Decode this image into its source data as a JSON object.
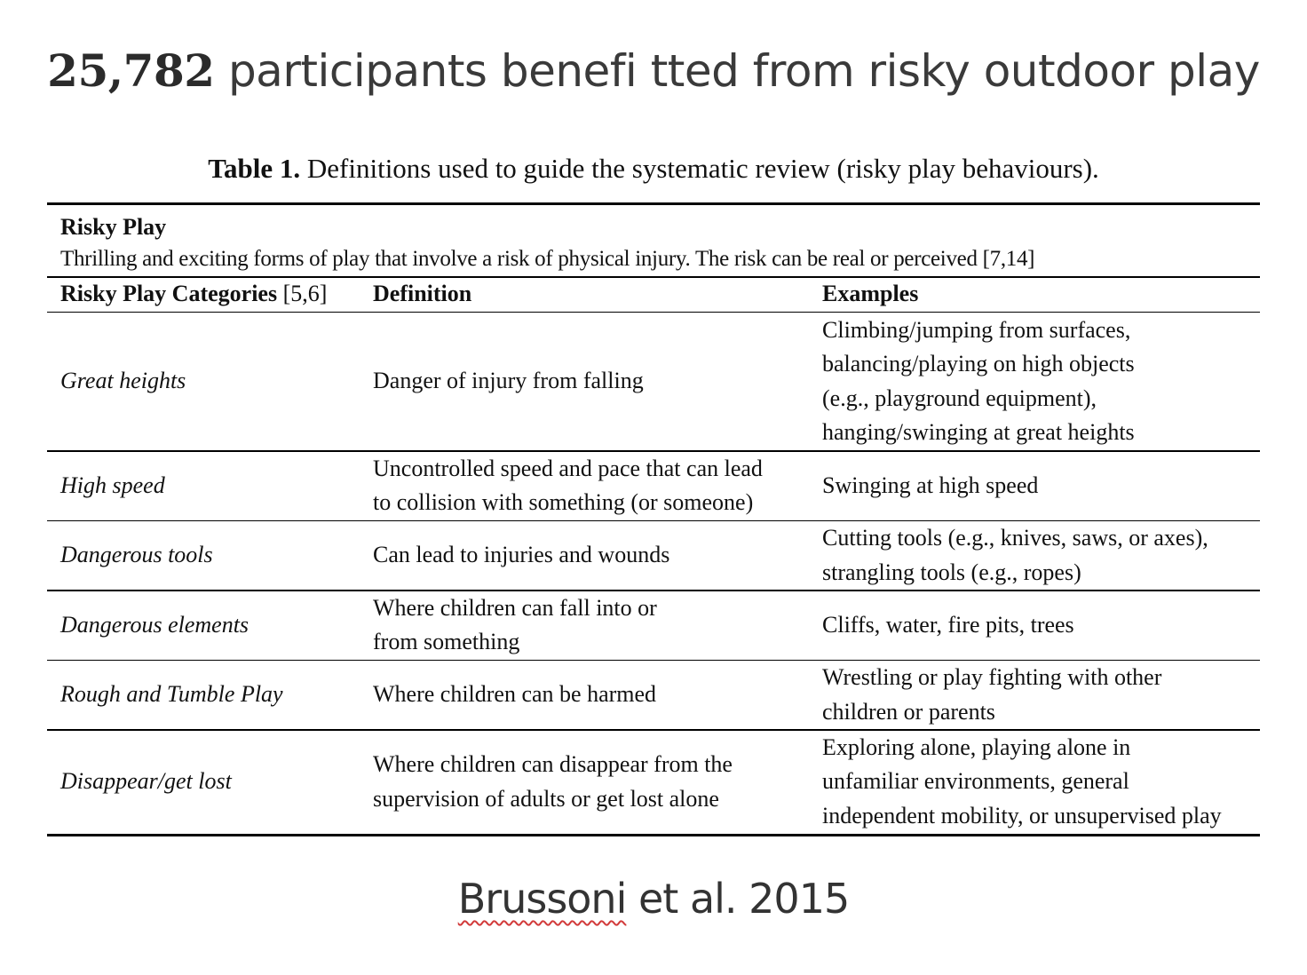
{
  "headline": {
    "number": "25,782",
    "text": "participants benefi tted from risky outdoor play"
  },
  "table": {
    "caption_label": "Table 1.",
    "caption_text": "Definitions used to guide the systematic review (risky play behaviours).",
    "risky_play_title": "Risky Play",
    "risky_play_description": "Thrilling and exciting forms of play that involve a risk of physical injury. The risk can be real or perceived [7,14]",
    "headers": {
      "category": "Risky Play Categories",
      "category_ref": "[5,6]",
      "definition": "Definition",
      "examples": "Examples"
    },
    "rows": [
      {
        "category": "Great heights",
        "definition": "Danger of injury from falling",
        "examples": "Climbing/jumping from surfaces,\nbalancing/playing on high objects\n(e.g., playground equipment),\nhanging/swinging at great heights"
      },
      {
        "category": "High speed",
        "definition": "Uncontrolled speed and pace that can lead\nto collision with something (or someone)",
        "examples": "Swinging at high speed"
      },
      {
        "category": "Dangerous tools",
        "definition": "Can lead to injuries and wounds",
        "examples": "Cutting tools (e.g., knives, saws, or axes),\nstrangling tools (e.g., ropes)"
      },
      {
        "category": "Dangerous elements",
        "definition": "Where children can fall into or\nfrom something",
        "examples": "Cliffs, water, fire pits, trees"
      },
      {
        "category": "Rough and Tumble Play",
        "definition": "Where children can be harmed",
        "examples": "Wrestling or play fighting with other\nchildren or parents"
      },
      {
        "category": "Disappear/get lost",
        "definition": "Where children can disappear from the\nsupervision of adults or get lost alone",
        "examples": "Exploring alone, playing alone in\nunfamiliar environments, general\nindependent mobility, or unsupervised play"
      }
    ]
  },
  "citation": {
    "author": "Brussoni",
    "rest": " et al. 2015"
  }
}
